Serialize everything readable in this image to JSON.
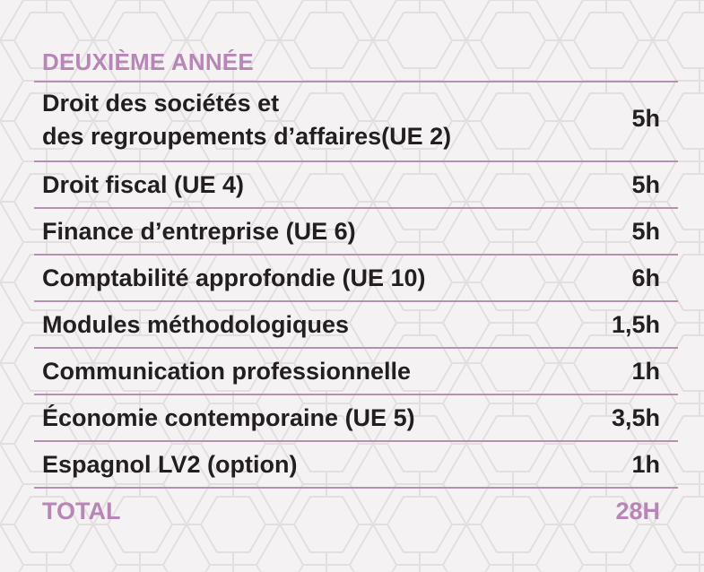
{
  "section": {
    "title": "DEUXIÈME ANNÉE"
  },
  "rows": [
    {
      "label_line1": "Droit des sociétés et",
      "label_line2": "des regroupements d’affaires(UE 2)",
      "hours": "5h"
    },
    {
      "label": "Droit fiscal (UE 4)",
      "hours": "5h"
    },
    {
      "label": "Finance d’entreprise (UE 6)",
      "hours": "5h"
    },
    {
      "label": "Comptabilité approfondie (UE 10)",
      "hours": "6h"
    },
    {
      "label": "Modules méthodologiques",
      "hours": "1,5h"
    },
    {
      "label": "Communication professionnelle",
      "hours": "1h"
    },
    {
      "label": "Économie contemporaine (UE 5)",
      "hours": "3,5h"
    },
    {
      "label": "Espagnol LV2 (option)",
      "hours": "1h"
    }
  ],
  "total": {
    "label": "TOTAL",
    "hours": "28H"
  },
  "colors": {
    "accent": "#b886b6",
    "rule": "#b590b3",
    "text": "#231f20",
    "background": "#f4f2f2"
  }
}
